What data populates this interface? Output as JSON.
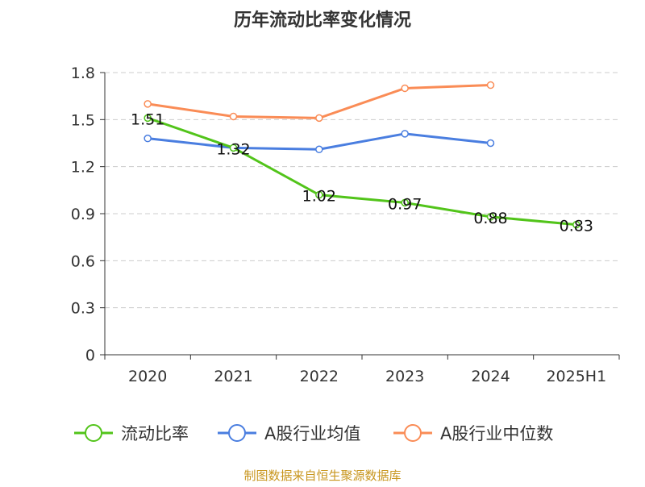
{
  "chart_data": {
    "type": "line",
    "title": "历年流动比率变化情况",
    "categories": [
      "2020",
      "2021",
      "2022",
      "2023",
      "2024",
      "2025H1"
    ],
    "ylim": [
      0,
      1.8
    ],
    "yticks": [
      "0",
      "0.3",
      "0.6",
      "0.9",
      "1.2",
      "1.5",
      "1.8"
    ],
    "grid": true,
    "legend_position": "bottom",
    "series": [
      {
        "name": "流动比率",
        "color": "#52c41a",
        "values": [
          1.51,
          1.32,
          1.02,
          0.97,
          0.88,
          0.83
        ],
        "labels": [
          "1.51",
          "1.32",
          "1.02",
          "0.97",
          "0.88",
          "0.83"
        ]
      },
      {
        "name": "A股行业均值",
        "color": "#4a7ee0",
        "values": [
          1.38,
          1.32,
          1.31,
          1.41,
          1.35,
          null
        ]
      },
      {
        "name": "A股行业中位数",
        "color": "#fa8c56",
        "values": [
          1.6,
          1.52,
          1.51,
          1.7,
          1.72,
          null
        ]
      }
    ],
    "source": "制图数据来自恒生聚源数据库"
  }
}
